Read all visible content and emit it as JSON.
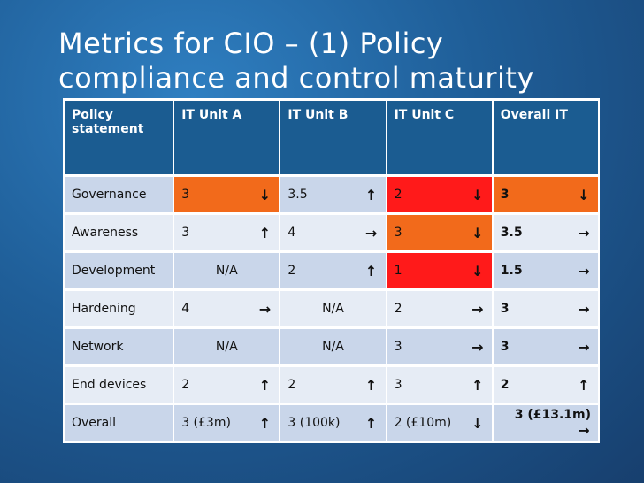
{
  "title": {
    "line1": "Metrics for CIO – (1) Policy",
    "line2": "compliance and control maturity"
  },
  "table": {
    "headers": [
      "Policy statement",
      "IT Unit A",
      "IT Unit B",
      "IT Unit C",
      "Overall IT"
    ],
    "rows": [
      {
        "label": "Governance",
        "cells": [
          {
            "value": "3",
            "arrow": "down"
          },
          {
            "value": "3.5",
            "arrow": "up"
          },
          {
            "value": "2",
            "arrow": "down"
          },
          {
            "value": "3",
            "arrow": "down"
          }
        ]
      },
      {
        "label": "Awareness",
        "cells": [
          {
            "value": "3",
            "arrow": "up"
          },
          {
            "value": "4",
            "arrow": "right"
          },
          {
            "value": "3",
            "arrow": "down"
          },
          {
            "value": "3.5",
            "arrow": "right"
          }
        ]
      },
      {
        "label": "Development",
        "cells": [
          {
            "value": "N/A",
            "arrow": ""
          },
          {
            "value": "2",
            "arrow": "up"
          },
          {
            "value": "1",
            "arrow": "down"
          },
          {
            "value": "1.5",
            "arrow": "right"
          }
        ]
      },
      {
        "label": "Hardening",
        "cells": [
          {
            "value": "4",
            "arrow": "right"
          },
          {
            "value": "N/A",
            "arrow": ""
          },
          {
            "value": "2",
            "arrow": "right"
          },
          {
            "value": "3",
            "arrow": "right"
          }
        ]
      },
      {
        "label": "Network",
        "cells": [
          {
            "value": "N/A",
            "arrow": ""
          },
          {
            "value": "N/A",
            "arrow": ""
          },
          {
            "value": "3",
            "arrow": "right"
          },
          {
            "value": "3",
            "arrow": "right"
          }
        ]
      },
      {
        "label": "End devices",
        "cells": [
          {
            "value": "2",
            "arrow": "up"
          },
          {
            "value": "2",
            "arrow": "up"
          },
          {
            "value": "3",
            "arrow": "up"
          },
          {
            "value": "2",
            "arrow": "up"
          }
        ]
      },
      {
        "label": "Overall",
        "cells": [
          {
            "value": "3 (£3m)",
            "arrow": "up"
          },
          {
            "value": "3 (100k)",
            "arrow": "up"
          },
          {
            "value": "2 (£10m)",
            "arrow": "down"
          },
          {
            "value": "3 (£13.1m)",
            "arrow": "right"
          }
        ]
      }
    ]
  },
  "colors": {
    "background": "#1f5e98",
    "header": "#1b5c91",
    "row_light": "#c9d6ea",
    "row_alt": "#e6ecf5",
    "orange": "#f26a1b",
    "red": "#ff1a1a"
  },
  "icons": {
    "up": "arrow-up-icon",
    "down": "arrow-down-icon",
    "right": "arrow-right-icon"
  }
}
